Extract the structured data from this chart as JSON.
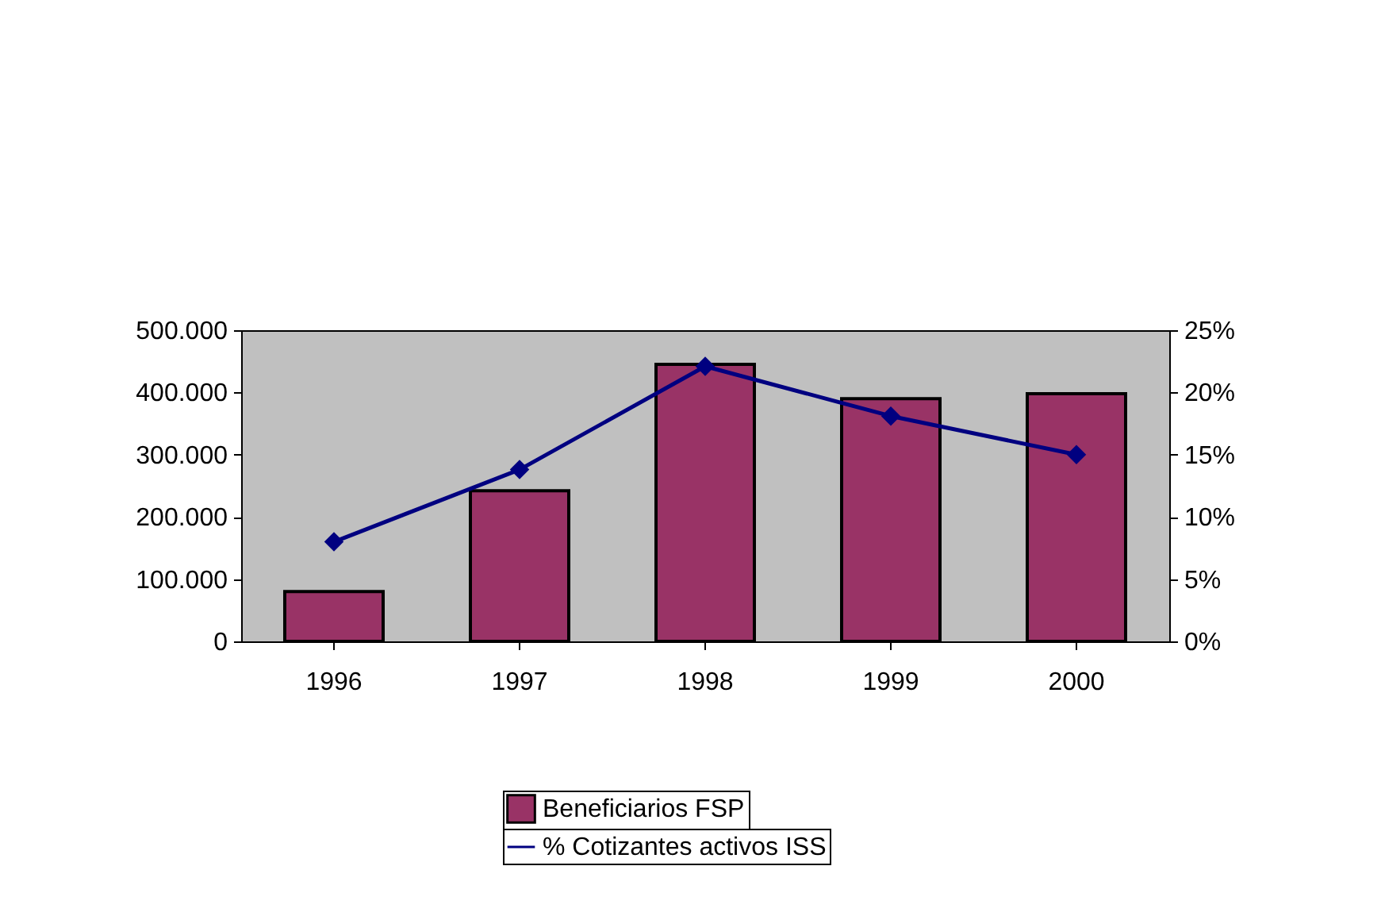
{
  "chart_data": {
    "type": "bar",
    "categories": [
      "1996",
      "1997",
      "1998",
      "1999",
      "2000"
    ],
    "series": [
      {
        "name": "Beneficiarios FSP",
        "color": "#993366",
        "values": [
          80000,
          242000,
          445000,
          390000,
          398000
        ]
      },
      {
        "name": "% Cotizantes activos ISS",
        "type": "line",
        "axis": "y2",
        "color": "#000080",
        "marker": "diamond",
        "values": [
          8.0,
          13.8,
          22.1,
          18.1,
          15.0
        ]
      }
    ],
    "ylim": [
      0,
      500000
    ],
    "yticks": [
      {
        "value": 0,
        "label": "0"
      },
      {
        "value": 100000,
        "label": "100.000"
      },
      {
        "value": 200000,
        "label": "200.000"
      },
      {
        "value": 300000,
        "label": "300.000"
      },
      {
        "value": 400000,
        "label": "400.000"
      },
      {
        "value": 500000,
        "label": "500.000"
      }
    ],
    "y2lim": [
      0,
      25
    ],
    "y2ticks": [
      {
        "value": 0,
        "label": "0%"
      },
      {
        "value": 5,
        "label": "5%"
      },
      {
        "value": 10,
        "label": "10%"
      },
      {
        "value": 15,
        "label": "15%"
      },
      {
        "value": 20,
        "label": "20%"
      },
      {
        "value": 25,
        "label": "25%"
      }
    ],
    "grid": false,
    "legend": "bottom"
  }
}
